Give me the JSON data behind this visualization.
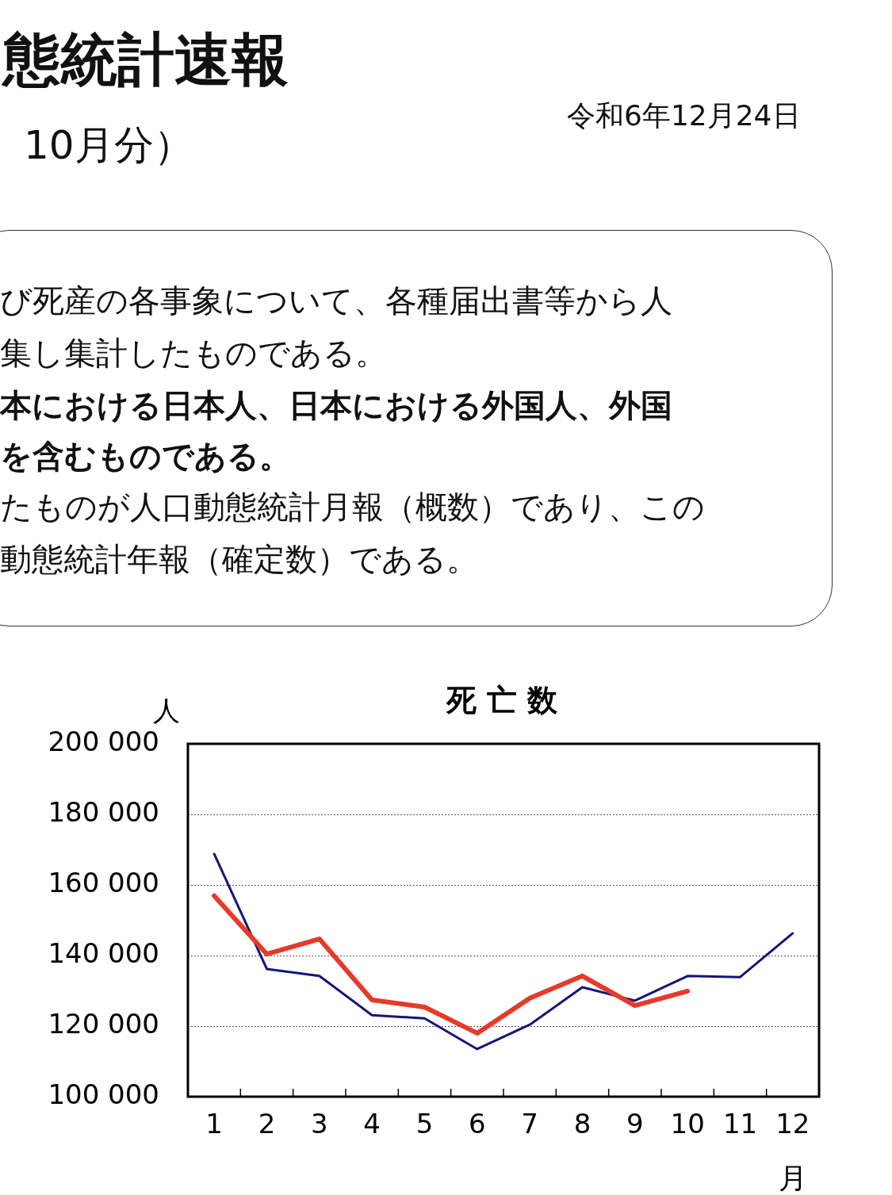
{
  "chart_data": {
    "type": "line",
    "title": "死 亡 数",
    "ylabel": "人",
    "xlabel": "月",
    "categories": [
      "1",
      "2",
      "3",
      "4",
      "5",
      "6",
      "7",
      "8",
      "9",
      "10",
      "11",
      "12"
    ],
    "series": [
      {
        "color": "#15157a",
        "values": [
          168800,
          136200,
          134200,
          123100,
          122200,
          113500,
          120400,
          131000,
          127200,
          134200,
          133900,
          146300
        ]
      },
      {
        "color": "#e63a2a",
        "values": [
          156900,
          140400,
          144700,
          127400,
          125400,
          118000,
          127900,
          134200,
          125800,
          129900,
          null,
          null
        ]
      }
    ],
    "ylim": [
      100000,
      200000
    ],
    "yticks": [
      {
        "value": 100000,
        "label": "100 000"
      },
      {
        "value": 120000,
        "label": "120 000"
      },
      {
        "value": 140000,
        "label": "140 000"
      },
      {
        "value": 160000,
        "label": "160 000"
      },
      {
        "value": 180000,
        "label": "180 000"
      },
      {
        "value": 200000,
        "label": "200 000"
      }
    ],
    "grid": "y",
    "legend": false,
    "marker": "none",
    "line_style": "solid",
    "annotations": [
      "態統計速報",
      "10月分）",
      "令和6年12月24日",
      "び死産の各事象について、各種届出書等から人",
      "集し集計したものである。",
      "本における日本人、日本における外国人、外国",
      "を含むものである。",
      "たものが人口動態統計月報（概数）であり、この",
      "動態統計年報（確定数）である。"
    ]
  }
}
